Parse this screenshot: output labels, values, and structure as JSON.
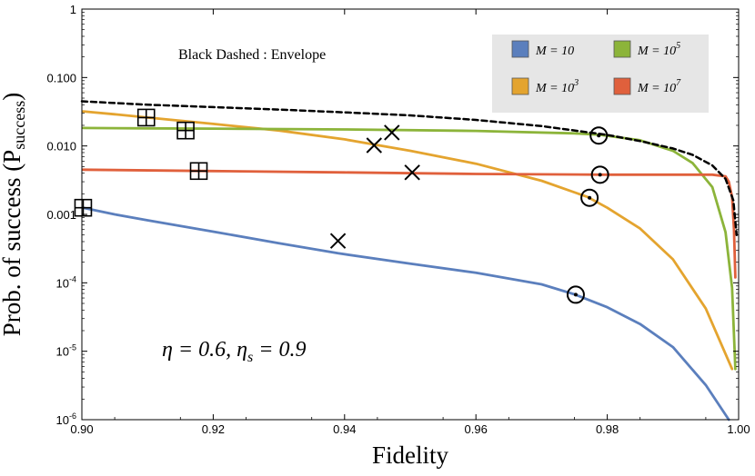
{
  "chart_data": {
    "type": "line",
    "title": "",
    "xlabel": "Fidelity",
    "ylabel": "Prob. of success (P",
    "ylabel_sub": "success",
    "ylabel_close": ")",
    "xlim": [
      0.9,
      1.0
    ],
    "ylim": [
      1e-06,
      1
    ],
    "yscale": "log",
    "x_ticks": [
      {
        "value": 0.9,
        "label": "0.90"
      },
      {
        "value": 0.92,
        "label": "0.92"
      },
      {
        "value": 0.94,
        "label": "0.94"
      },
      {
        "value": 0.96,
        "label": "0.96"
      },
      {
        "value": 0.98,
        "label": "0.98"
      },
      {
        "value": 1.0,
        "label": "1.00"
      }
    ],
    "y_ticks": [
      {
        "value": 1,
        "label": "1",
        "exp": ""
      },
      {
        "value": 0.1,
        "label": "0.100",
        "exp": ""
      },
      {
        "value": 0.01,
        "label": "0.010",
        "exp": ""
      },
      {
        "value": 0.001,
        "label": "0.001",
        "exp": ""
      },
      {
        "value": 0.0001,
        "label": "10",
        "exp": "-4"
      },
      {
        "value": 1e-05,
        "label": "10",
        "exp": "-5"
      },
      {
        "value": 1e-06,
        "label": "10",
        "exp": "-6"
      }
    ],
    "annotation": "Black Dashed : Envelope",
    "parameters_text": "η = 0.6, η",
    "parameters_sub": "s",
    "parameters_tail": " = 0.9",
    "legend": [
      {
        "name": "M = 10",
        "base": "M = 10",
        "exp": "",
        "color": "#5b7fbd"
      },
      {
        "name": "M = 10^5",
        "base": "M = 10",
        "exp": "5",
        "color": "#8cb43a"
      },
      {
        "name": "M = 10^3",
        "base": "M = 10",
        "exp": "3",
        "color": "#e4a42f"
      },
      {
        "name": "M = 10^7",
        "base": "M = 10",
        "exp": "7",
        "color": "#e0603c"
      }
    ],
    "series": [
      {
        "name": "M = 10",
        "color": "#5b7fbd",
        "x": [
          0.9002,
          0.905,
          0.91,
          0.92,
          0.93,
          0.939,
          0.95,
          0.96,
          0.97,
          0.975,
          0.98,
          0.985,
          0.99,
          0.995,
          0.9985
        ],
        "y": [
          0.00125,
          0.001,
          0.00082,
          0.00056,
          0.00038,
          0.00027,
          0.00019,
          0.00014,
          9.5e-05,
          6.8e-05,
          4.4e-05,
          2.5e-05,
          1.15e-05,
          3.2e-06,
          9e-07
        ]
      },
      {
        "name": "M = 10^3",
        "color": "#e4a42f",
        "x": [
          0.9002,
          0.905,
          0.91,
          0.92,
          0.93,
          0.94,
          0.95,
          0.96,
          0.97,
          0.977,
          0.98,
          0.985,
          0.99,
          0.995,
          0.999
        ],
        "y": [
          0.032,
          0.029,
          0.026,
          0.021,
          0.0168,
          0.0125,
          0.0085,
          0.0055,
          0.0031,
          0.0018,
          0.00125,
          0.00062,
          0.00022,
          4.2e-05,
          5.5e-06
        ]
      },
      {
        "name": "M = 10^5",
        "color": "#8cb43a",
        "x": [
          0.9002,
          0.91,
          0.92,
          0.94,
          0.96,
          0.975,
          0.979,
          0.985,
          0.99,
          0.993,
          0.996,
          0.998,
          0.999,
          0.9995
        ],
        "y": [
          0.0183,
          0.0181,
          0.0179,
          0.0174,
          0.0166,
          0.0153,
          0.0145,
          0.0121,
          0.0085,
          0.0056,
          0.0025,
          0.00055,
          8.5e-05,
          5.5e-06
        ]
      },
      {
        "name": "M = 10^7",
        "color": "#e0603c",
        "x": [
          0.9002,
          0.92,
          0.94,
          0.96,
          0.98,
          0.99,
          0.996,
          0.998,
          0.9985,
          0.999,
          0.9993,
          0.9995
        ],
        "y": [
          0.0045,
          0.0043,
          0.0041,
          0.0039,
          0.0038,
          0.0038,
          0.0038,
          0.0036,
          0.003,
          0.0018,
          0.0006,
          0.00012
        ]
      },
      {
        "name": "Envelope",
        "color": "#000000",
        "dashed": true,
        "x": [
          0.9,
          0.91,
          0.92,
          0.93,
          0.94,
          0.95,
          0.96,
          0.97,
          0.98,
          0.985,
          0.99,
          0.993,
          0.996,
          0.998,
          0.9992,
          0.9997
        ],
        "y": [
          0.045,
          0.04,
          0.037,
          0.034,
          0.031,
          0.028,
          0.024,
          0.0195,
          0.0145,
          0.0118,
          0.0092,
          0.0074,
          0.0052,
          0.0033,
          0.0016,
          0.0005
        ]
      }
    ],
    "markers": [
      {
        "symbol": "boxplus",
        "x": 0.9002,
        "y": 0.00125
      },
      {
        "symbol": "boxplus",
        "x": 0.9098,
        "y": 0.026
      },
      {
        "symbol": "boxplus",
        "x": 0.9158,
        "y": 0.0168
      },
      {
        "symbol": "boxplus",
        "x": 0.9178,
        "y": 0.0043
      },
      {
        "symbol": "cross",
        "x": 0.939,
        "y": 0.00041
      },
      {
        "symbol": "cross",
        "x": 0.9445,
        "y": 0.0102
      },
      {
        "symbol": "cross",
        "x": 0.9472,
        "y": 0.0157
      },
      {
        "symbol": "cross",
        "x": 0.9503,
        "y": 0.0041
      },
      {
        "symbol": "odot",
        "x": 0.9752,
        "y": 6.7e-05
      },
      {
        "symbol": "odot",
        "x": 0.9773,
        "y": 0.00175
      },
      {
        "symbol": "odot",
        "x": 0.9787,
        "y": 0.0142
      },
      {
        "symbol": "odot",
        "x": 0.9789,
        "y": 0.0038
      }
    ]
  }
}
